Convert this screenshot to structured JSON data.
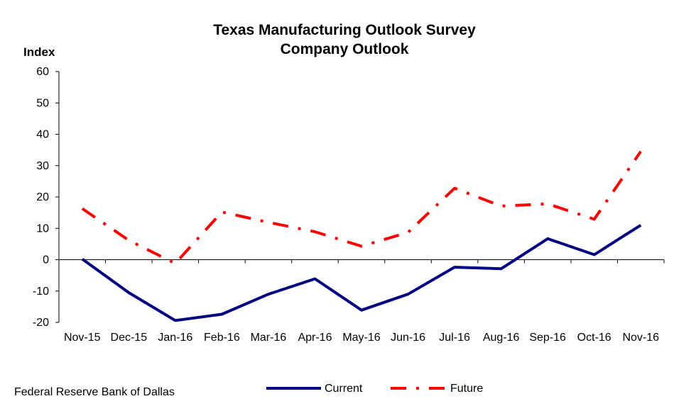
{
  "chart_data": {
    "type": "line",
    "title": [
      "Texas Manufacturing Outlook Survey",
      "Company Outlook"
    ],
    "ylabel": "Index",
    "xlabel": "",
    "ylim": [
      -20,
      60
    ],
    "yticks": [
      60,
      50,
      40,
      30,
      20,
      10,
      0,
      -10,
      -20
    ],
    "categories": [
      "Nov-15",
      "Dec-15",
      "Jan-16",
      "Feb-16",
      "Mar-16",
      "Apr-16",
      "May-16",
      "Jun-16",
      "Jul-16",
      "Aug-16",
      "Sep-16",
      "Oct-16",
      "Nov-16"
    ],
    "series": [
      {
        "name": "Current",
        "color": "#000080",
        "style": "solid",
        "values": [
          0.2,
          -10.5,
          -19.4,
          -17.4,
          -11.0,
          -6.1,
          -16.1,
          -11.0,
          -2.4,
          -2.9,
          6.7,
          1.6,
          11.0
        ]
      },
      {
        "name": "Future",
        "color": "#ff0000",
        "style": "dash-dot",
        "values": [
          16.3,
          6.2,
          -1.2,
          15.2,
          11.9,
          8.9,
          4.3,
          8.7,
          22.8,
          17.1,
          17.8,
          12.9,
          34.5
        ]
      }
    ],
    "grid": false,
    "legend": "bottom-center"
  },
  "source": "Federal Reserve Bank of Dallas"
}
